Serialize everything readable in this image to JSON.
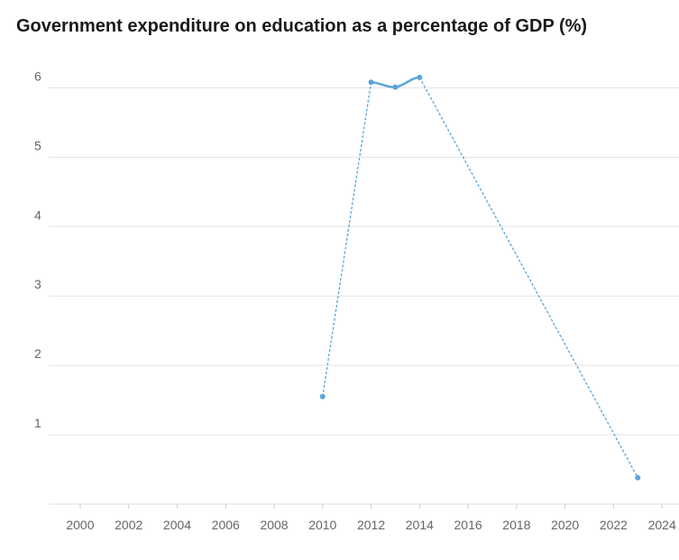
{
  "chart_data": {
    "type": "line",
    "title": "Government expenditure on education as a percentage of GDP (%)",
    "xlabel": "",
    "ylabel": "",
    "xlim": [
      1998.7,
      2024.7
    ],
    "ylim": [
      0,
      6.2
    ],
    "x_ticks": [
      "2000",
      "2002",
      "2004",
      "2006",
      "2008",
      "2010",
      "2012",
      "2014",
      "2016",
      "2018",
      "2020",
      "2022",
      "2024"
    ],
    "y_ticks": [
      "1",
      "2",
      "3",
      "4",
      "5",
      "6"
    ],
    "grid": "horizontal",
    "line_color": "#5aa5d9",
    "series": [
      {
        "x": [
          2010,
          2012,
          2013,
          2014,
          2023
        ],
        "y": [
          1.55,
          6.08,
          6.01,
          6.15,
          0.38
        ]
      }
    ]
  }
}
